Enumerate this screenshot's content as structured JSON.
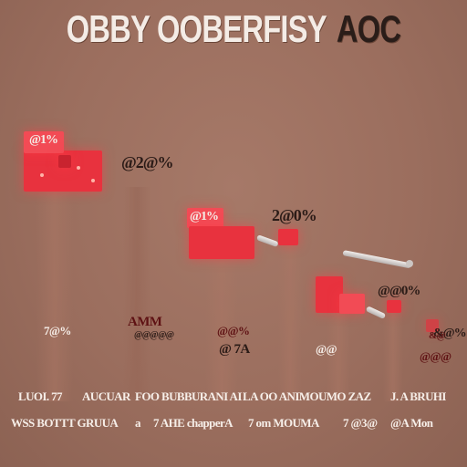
{
  "header": {
    "title": "OBBY OOBERFISY",
    "suffix": "AOC"
  },
  "stages": [
    {
      "top_label": "@1%",
      "side_label": "@2@%"
    },
    {
      "top_label": "@1%",
      "side_label": "2@0%"
    },
    {
      "side_label": "@@0%"
    },
    {
      "side_label": "&@%"
    }
  ],
  "floor_labels": {
    "stage1": "7@%",
    "stage2_a": "AMM",
    "stage2_b": "@@@@@",
    "stage3_a": "@@%",
    "stage3_b": "@ 7A",
    "stage4": "@@",
    "stage5_a": "&@",
    "stage5_b": "@@@"
  },
  "row1": [
    "LUOI. 77",
    "AUCUAR",
    "FOO BUBBURANI AI",
    "LA OO ANIMOUMO ZAZ",
    "J. A BRUHI"
  ],
  "row2": [
    "WSS BOTTT GRUUA",
    "a",
    "7 AHE chapperA",
    "7 om MOUMA",
    "7 @3@",
    "@A Mon"
  ]
}
